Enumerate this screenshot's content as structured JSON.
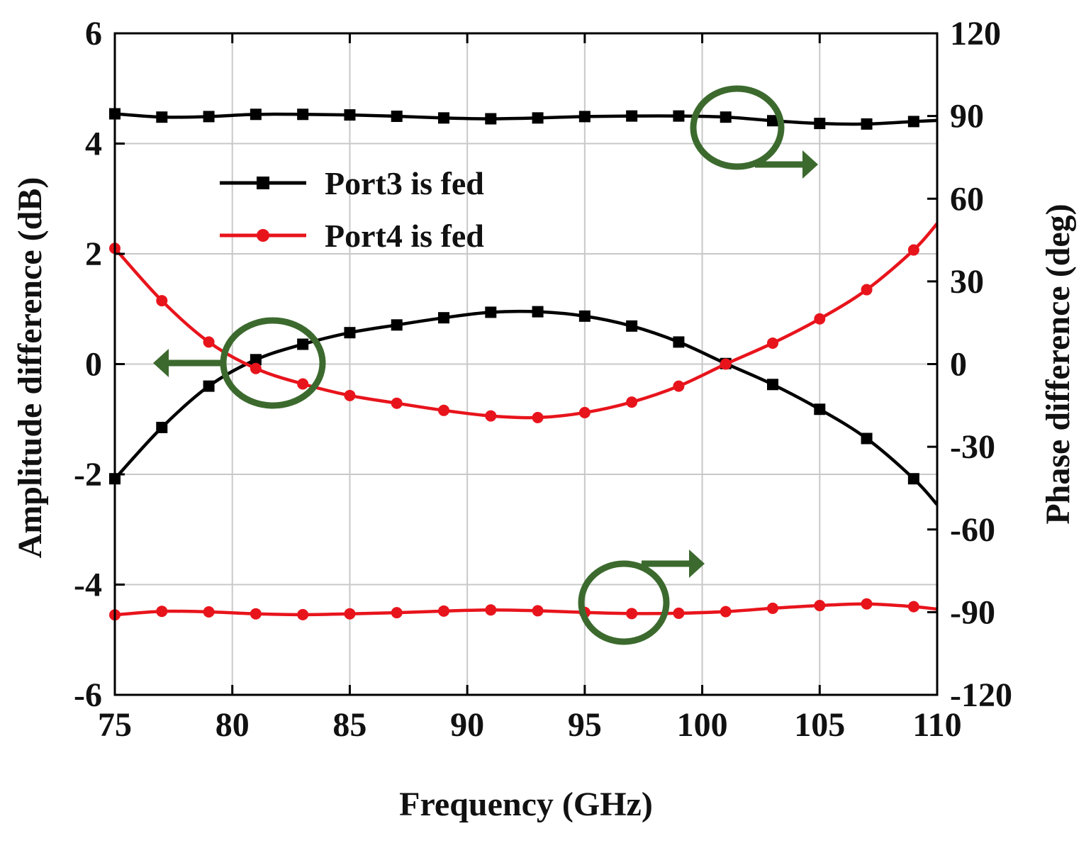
{
  "chart_data": {
    "type": "line",
    "xlabel": "Frequency (GHz)",
    "ylabel_left": "Amplitude difference (dB)",
    "ylabel_right": "Phase difference (deg)",
    "xlim": [
      75,
      110
    ],
    "ylim_left": [
      -6,
      6
    ],
    "ylim_right": [
      -120,
      120
    ],
    "x_ticks": [
      "75",
      "80",
      "85",
      "90",
      "95",
      "100",
      "105",
      "110"
    ],
    "y_ticks_left": [
      "6",
      "4",
      "2",
      "0",
      "-2",
      "-4",
      "-6"
    ],
    "y_ticks_right": [
      "120",
      "90",
      "60",
      "30",
      "0",
      "-30",
      "-60",
      "-90",
      "-120"
    ],
    "grid": true,
    "legend": {
      "placement": "upper-left",
      "entries": [
        "Port3 is fed",
        "Port4 is fed"
      ]
    },
    "colors": {
      "port3": "#000000",
      "port4": "#e8141c",
      "annotation": "#3c6a2e",
      "grid": "#c8c8c8"
    },
    "series": [
      {
        "name": "Port3 is fed",
        "quantity": "amplitude",
        "axis": "left",
        "x": [
          75,
          77,
          79,
          81,
          83,
          85,
          87,
          89,
          91,
          93,
          95,
          97,
          99,
          101,
          103,
          105,
          107,
          109,
          110
        ],
        "values": [
          -2.08,
          -1.15,
          -0.4,
          0.08,
          0.36,
          0.57,
          0.71,
          0.84,
          0.94,
          0.95,
          0.87,
          0.69,
          0.4,
          0.01,
          -0.37,
          -0.82,
          -1.35,
          -2.08,
          -2.55
        ]
      },
      {
        "name": "Port4 is fed",
        "quantity": "amplitude",
        "axis": "left",
        "x": [
          75,
          77,
          79,
          81,
          83,
          85,
          87,
          89,
          91,
          93,
          95,
          97,
          99,
          101,
          103,
          105,
          107,
          109,
          110
        ],
        "values": [
          2.1,
          1.15,
          0.4,
          -0.08,
          -0.36,
          -0.57,
          -0.71,
          -0.84,
          -0.94,
          -0.97,
          -0.88,
          -0.69,
          -0.4,
          0.0,
          0.38,
          0.82,
          1.35,
          2.07,
          2.55
        ]
      },
      {
        "name": "Port3 is fed",
        "quantity": "phase",
        "axis": "right",
        "x": [
          75,
          77,
          79,
          81,
          83,
          85,
          87,
          89,
          91,
          93,
          95,
          97,
          99,
          101,
          103,
          105,
          107,
          109,
          110
        ],
        "values": [
          90.8,
          89.6,
          89.8,
          90.6,
          90.6,
          90.4,
          89.9,
          89.3,
          89.0,
          89.3,
          89.8,
          90.0,
          90.0,
          89.6,
          88.3,
          87.3,
          87.1,
          88.0,
          88.4
        ]
      },
      {
        "name": "Port4 is fed",
        "quantity": "phase",
        "axis": "right",
        "x": [
          75,
          77,
          79,
          81,
          83,
          85,
          87,
          89,
          91,
          93,
          95,
          97,
          99,
          101,
          103,
          105,
          107,
          109,
          110
        ],
        "values": [
          -91.0,
          -89.7,
          -89.9,
          -90.6,
          -90.9,
          -90.6,
          -90.2,
          -89.6,
          -89.2,
          -89.5,
          -90.1,
          -90.5,
          -90.4,
          -89.8,
          -88.6,
          -87.6,
          -87.0,
          -88.0,
          -88.9
        ]
      }
    ]
  }
}
